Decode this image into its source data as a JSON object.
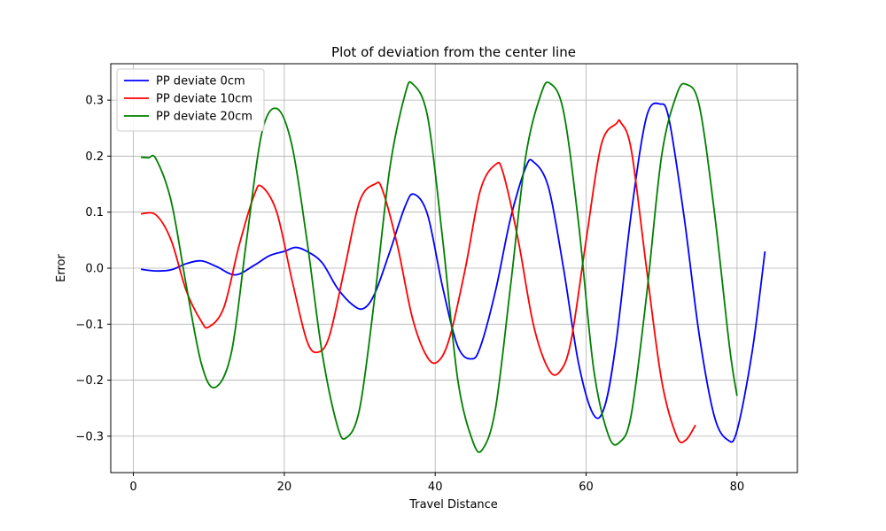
{
  "chart_data": {
    "type": "line",
    "title": "Plot of deviation from the center line",
    "xlabel": "Travel Distance",
    "ylabel": "Error",
    "xlim": [
      -3,
      88
    ],
    "ylim": [
      -0.365,
      0.365
    ],
    "xticks": [
      0,
      20,
      40,
      60,
      80
    ],
    "yticks": [
      -0.3,
      -0.2,
      -0.1,
      0.0,
      0.1,
      0.2,
      0.3
    ],
    "xtick_labels": [
      "0",
      "20",
      "40",
      "60",
      "80"
    ],
    "ytick_labels": [
      "−0.3",
      "−0.2",
      "−0.1",
      "0.0",
      "0.1",
      "0.2",
      "0.3"
    ],
    "grid": true,
    "legend_position": "top-left",
    "series": [
      {
        "name": "PP deviate 0cm",
        "color": "#0000ff",
        "x": [
          1,
          3,
          5,
          7,
          9,
          11,
          13.5,
          16,
          18,
          20,
          21.5,
          23,
          25,
          27,
          29,
          30.5,
          32,
          34,
          36,
          37.2,
          39,
          41,
          43,
          44.8,
          46,
          48,
          50,
          52,
          53,
          55,
          57,
          59,
          61,
          62.5,
          64,
          66,
          68,
          69.8,
          71,
          73,
          75,
          77,
          78.8,
          80,
          82,
          83.7
        ],
        "y": [
          -0.002,
          -0.005,
          -0.003,
          0.008,
          0.013,
          0.003,
          -0.012,
          0.005,
          0.022,
          0.03,
          0.037,
          0.03,
          0.01,
          -0.035,
          -0.065,
          -0.072,
          -0.045,
          0.03,
          0.11,
          0.132,
          0.095,
          -0.035,
          -0.14,
          -0.162,
          -0.14,
          -0.04,
          0.09,
          0.18,
          0.19,
          0.145,
          0.0,
          -0.17,
          -0.262,
          -0.245,
          -0.13,
          0.1,
          0.27,
          0.293,
          0.265,
          0.09,
          -0.12,
          -0.265,
          -0.307,
          -0.29,
          -0.15,
          0.03
        ]
      },
      {
        "name": "PP deviate 10cm",
        "color": "#ff0000",
        "x": [
          1,
          3,
          5,
          7,
          9,
          10,
          12,
          14,
          16,
          17,
          19,
          21,
          23,
          24.5,
          26,
          28,
          30,
          32,
          33,
          35,
          37,
          39,
          40.5,
          42,
          44,
          46,
          48,
          49,
          51,
          53,
          55,
          56.5,
          58,
          60,
          62,
          64,
          64.6,
          66,
          68,
          70,
          72,
          73.2,
          74.5
        ],
        "y": [
          0.097,
          0.095,
          0.05,
          -0.04,
          -0.095,
          -0.105,
          -0.07,
          0.04,
          0.13,
          0.146,
          0.1,
          -0.02,
          -0.13,
          -0.15,
          -0.12,
          0.0,
          0.12,
          0.15,
          0.14,
          0.04,
          -0.09,
          -0.16,
          -0.165,
          -0.12,
          0.0,
          0.14,
          0.185,
          0.17,
          0.05,
          -0.1,
          -0.18,
          -0.185,
          -0.13,
          0.05,
          0.22,
          0.258,
          0.26,
          0.21,
          0.0,
          -0.2,
          -0.3,
          -0.307,
          -0.28
        ]
      },
      {
        "name": "PP deviate 20cm",
        "color": "#008000",
        "x": [
          1,
          2,
          3,
          5,
          7,
          9,
          10.8,
          13,
          15,
          17,
          19,
          21,
          23,
          25,
          27,
          28.2,
          30,
          32,
          34,
          36,
          37,
          39,
          41,
          43,
          45,
          46.3,
          48,
          50,
          52,
          54,
          55.2,
          57,
          59,
          61,
          63,
          64.5,
          66,
          68,
          70,
          72,
          73.3,
          75,
          77,
          79,
          80
        ],
        "y": [
          0.198,
          0.197,
          0.195,
          0.12,
          -0.03,
          -0.17,
          -0.213,
          -0.15,
          0.05,
          0.24,
          0.285,
          0.22,
          0.05,
          -0.15,
          -0.28,
          -0.303,
          -0.25,
          -0.05,
          0.18,
          0.31,
          0.329,
          0.27,
          0.05,
          -0.2,
          -0.31,
          -0.323,
          -0.25,
          -0.03,
          0.2,
          0.31,
          0.33,
          0.28,
          0.08,
          -0.18,
          -0.3,
          -0.31,
          -0.26,
          -0.05,
          0.2,
          0.31,
          0.328,
          0.29,
          0.1,
          -0.14,
          -0.228
        ]
      }
    ]
  }
}
